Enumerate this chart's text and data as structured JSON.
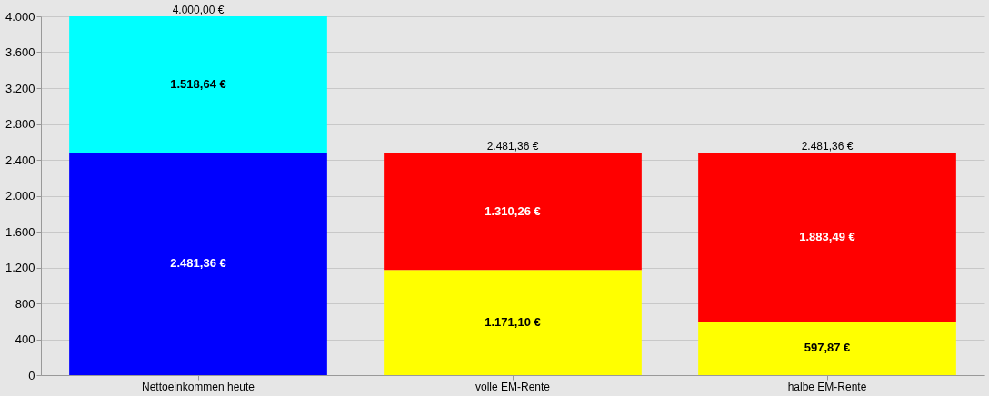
{
  "chart_data": {
    "type": "bar",
    "stacked": true,
    "categories": [
      "Nettoeinkommen heute",
      "volle EM-Rente",
      "halbe EM-Rente"
    ],
    "series": [
      {
        "colors": [
          "#0000ff",
          "#ffff00",
          "#ffff00"
        ],
        "values": [
          2481.36,
          1171.1,
          597.87
        ],
        "value_labels": [
          "2.481,36 €",
          "1.171,10 €",
          "597,87 €"
        ]
      },
      {
        "colors": [
          "#00ffff",
          "#ff0000",
          "#ff0000"
        ],
        "values": [
          1518.64,
          1310.26,
          1883.49
        ],
        "value_labels": [
          "1.518,64 €",
          "1.310,26 €",
          "1.883,49 €"
        ]
      }
    ],
    "totals": [
      "4.000,00 €",
      "2.481,36 €",
      "2.481,36 €"
    ],
    "ylim": [
      0,
      4000
    ],
    "yticks": [
      {
        "value": 0,
        "label": "0"
      },
      {
        "value": 400,
        "label": "400"
      },
      {
        "value": 800,
        "label": "800"
      },
      {
        "value": 1200,
        "label": "1.200"
      },
      {
        "value": 1600,
        "label": "1.600"
      },
      {
        "value": 2000,
        "label": "2.000"
      },
      {
        "value": 2400,
        "label": "2.400"
      },
      {
        "value": 2800,
        "label": "2.800"
      },
      {
        "value": 3200,
        "label": "3.200"
      },
      {
        "value": 3600,
        "label": "3.600"
      },
      {
        "value": 4000,
        "label": "4.000"
      }
    ],
    "grid": "y"
  }
}
